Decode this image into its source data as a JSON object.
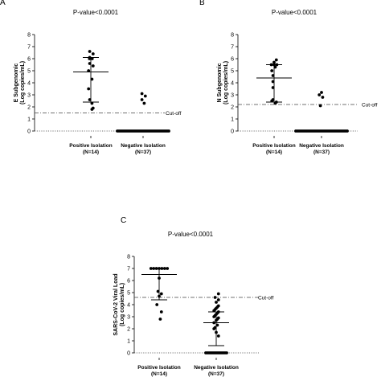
{
  "chart_data": [
    {
      "type": "scatter",
      "panel": "A",
      "title": "P-value<0.0001",
      "ylabel_line1": "E Subgenomic",
      "ylabel_line2": "(Log copies/mL)",
      "ylim": [
        0,
        8
      ],
      "yticks": [
        0,
        1,
        2,
        3,
        4,
        5,
        6,
        7,
        8
      ],
      "categories": [
        {
          "line1": "Positive Isolation",
          "line2": "(N=14)"
        },
        {
          "line1": "Negative Isolation",
          "line2": "(N=37)"
        }
      ],
      "cutoff": {
        "value": 1.5,
        "label": "Cut-off"
      },
      "zero_line": 0,
      "series": [
        {
          "values": [
            6.6,
            6.4,
            6.1,
            6.0,
            6.0,
            5.6,
            5.4,
            5.0,
            4.3,
            3.5,
            2.6,
            2.3,
            1.9,
            1.8
          ],
          "mean": 4.9,
          "sd_low": 2.4,
          "sd_high": 6.1
        },
        {
          "values": [
            3.1,
            2.9,
            2.6,
            2.3,
            0,
            0,
            0,
            0,
            0,
            0,
            0,
            0,
            0,
            0,
            0,
            0,
            0,
            0,
            0,
            0,
            0,
            0,
            0,
            0,
            0,
            0,
            0,
            0,
            0,
            0,
            0,
            0,
            0,
            0,
            0,
            0,
            0
          ],
          "mean": 0.0
        }
      ]
    },
    {
      "type": "scatter",
      "panel": "B",
      "title": "P-value<0.0001",
      "ylabel_line1": "N Subgenomic",
      "ylabel_line2": "(Log copies/mL)",
      "ylim": [
        0,
        8
      ],
      "yticks": [
        0,
        1,
        2,
        3,
        4,
        5,
        6,
        7,
        8
      ],
      "categories": [
        {
          "line1": "Positive Isolation",
          "line2": "(N=14)"
        },
        {
          "line1": "Negative Isolation",
          "line2": "(N=37)"
        }
      ],
      "cutoff": {
        "value": 2.2,
        "label": "Cut-off"
      },
      "zero_line": 0,
      "series": [
        {
          "values": [
            5.9,
            5.7,
            5.5,
            5.5,
            5.5,
            5.3,
            5.0,
            4.6,
            4.1,
            3.6,
            2.6,
            2.5,
            2.4,
            2.3
          ],
          "mean": 4.4,
          "sd_low": 2.4,
          "sd_high": 5.5
        },
        {
          "values": [
            3.2,
            3.0,
            2.8,
            2.1,
            0,
            0,
            0,
            0,
            0,
            0,
            0,
            0,
            0,
            0,
            0,
            0,
            0,
            0,
            0,
            0,
            0,
            0,
            0,
            0,
            0,
            0,
            0,
            0,
            0,
            0,
            0,
            0,
            0,
            0,
            0,
            0,
            0
          ],
          "mean": 0.0
        }
      ]
    },
    {
      "type": "scatter",
      "panel": "C",
      "title": "P-value<0.0001",
      "ylabel_line1": "SARS-CoV-2 Viral Load",
      "ylabel_line2": "(Log copies/mL)",
      "ylim": [
        0,
        8
      ],
      "yticks": [
        0,
        1,
        2,
        3,
        4,
        5,
        6,
        7,
        8
      ],
      "categories": [
        {
          "line1": "Positive Isolation",
          "line2": "(N=14)"
        },
        {
          "line1": "Negative Isolation",
          "line2": "(N=37)"
        }
      ],
      "cutoff": {
        "value": 4.6,
        "label": "Cut-off"
      },
      "zero_line": 0,
      "series": [
        {
          "values": [
            7.0,
            7.0,
            7.0,
            7.0,
            7.0,
            7.0,
            7.0,
            6.2,
            5.1,
            4.9,
            4.7,
            4.0,
            3.4,
            2.8
          ],
          "mean": 6.5,
          "sd_low": 4.4,
          "sd_high": 7.0
        },
        {
          "values": [
            4.9,
            4.6,
            4.4,
            4.2,
            3.9,
            3.8,
            3.7,
            3.6,
            3.5,
            3.4,
            3.3,
            3.2,
            3.1,
            3.0,
            2.9,
            2.8,
            2.7,
            2.5,
            2.3,
            2.1,
            2.0,
            1.7,
            1.4,
            0,
            0,
            0,
            0,
            0,
            0,
            0,
            0,
            0,
            0,
            0,
            0,
            0,
            0
          ],
          "mean": 2.5,
          "sd_low": 0.6,
          "sd_high": 3.4
        }
      ]
    }
  ]
}
